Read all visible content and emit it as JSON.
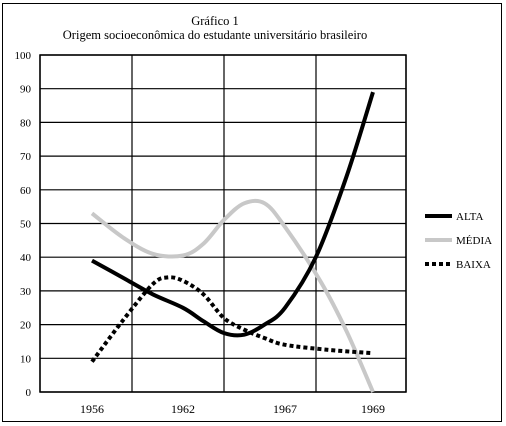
{
  "chart_data": {
    "type": "line",
    "title": "Gráfico 1",
    "subtitle": "Origem socioeconômica do estudante universitário brasileiro",
    "xlabel": "",
    "ylabel": "",
    "categories": [
      "1956",
      "1962",
      "1967",
      "1969"
    ],
    "ylim": [
      0,
      100
    ],
    "yticks": [
      0,
      10,
      20,
      30,
      40,
      50,
      60,
      70,
      80,
      90,
      100
    ],
    "grid": true,
    "legend_position": "right",
    "series": [
      {
        "name": "ALTA",
        "style": "solid",
        "color": "#000000",
        "points": [
          [
            1956,
            39
          ],
          [
            1958,
            34
          ],
          [
            1960,
            29
          ],
          [
            1962,
            25
          ],
          [
            1963,
            21
          ],
          [
            1964,
            17.5
          ],
          [
            1965,
            17
          ],
          [
            1966,
            20
          ],
          [
            1967,
            25
          ],
          [
            1967.7,
            40
          ],
          [
            1968.4,
            64
          ],
          [
            1969,
            89
          ]
        ]
      },
      {
        "name": "MÉDIA",
        "style": "solid",
        "color": "#c8c8c8",
        "points": [
          [
            1956,
            53
          ],
          [
            1958,
            46
          ],
          [
            1960,
            41
          ],
          [
            1962,
            40.5
          ],
          [
            1963,
            44
          ],
          [
            1964,
            51
          ],
          [
            1965,
            56
          ],
          [
            1966,
            56
          ],
          [
            1967,
            49
          ],
          [
            1967.8,
            33
          ],
          [
            1968.4,
            18
          ],
          [
            1969,
            0
          ]
        ]
      },
      {
        "name": "BAIXA",
        "style": "dotted",
        "color": "#000000",
        "points": [
          [
            1956,
            9
          ],
          [
            1958,
            21
          ],
          [
            1960,
            32
          ],
          [
            1961,
            34
          ],
          [
            1962,
            33
          ],
          [
            1963,
            29
          ],
          [
            1964,
            22
          ],
          [
            1965,
            18.5
          ],
          [
            1966,
            16
          ],
          [
            1967,
            14
          ],
          [
            1968,
            12.5
          ],
          [
            1969,
            11.5
          ]
        ]
      }
    ]
  }
}
